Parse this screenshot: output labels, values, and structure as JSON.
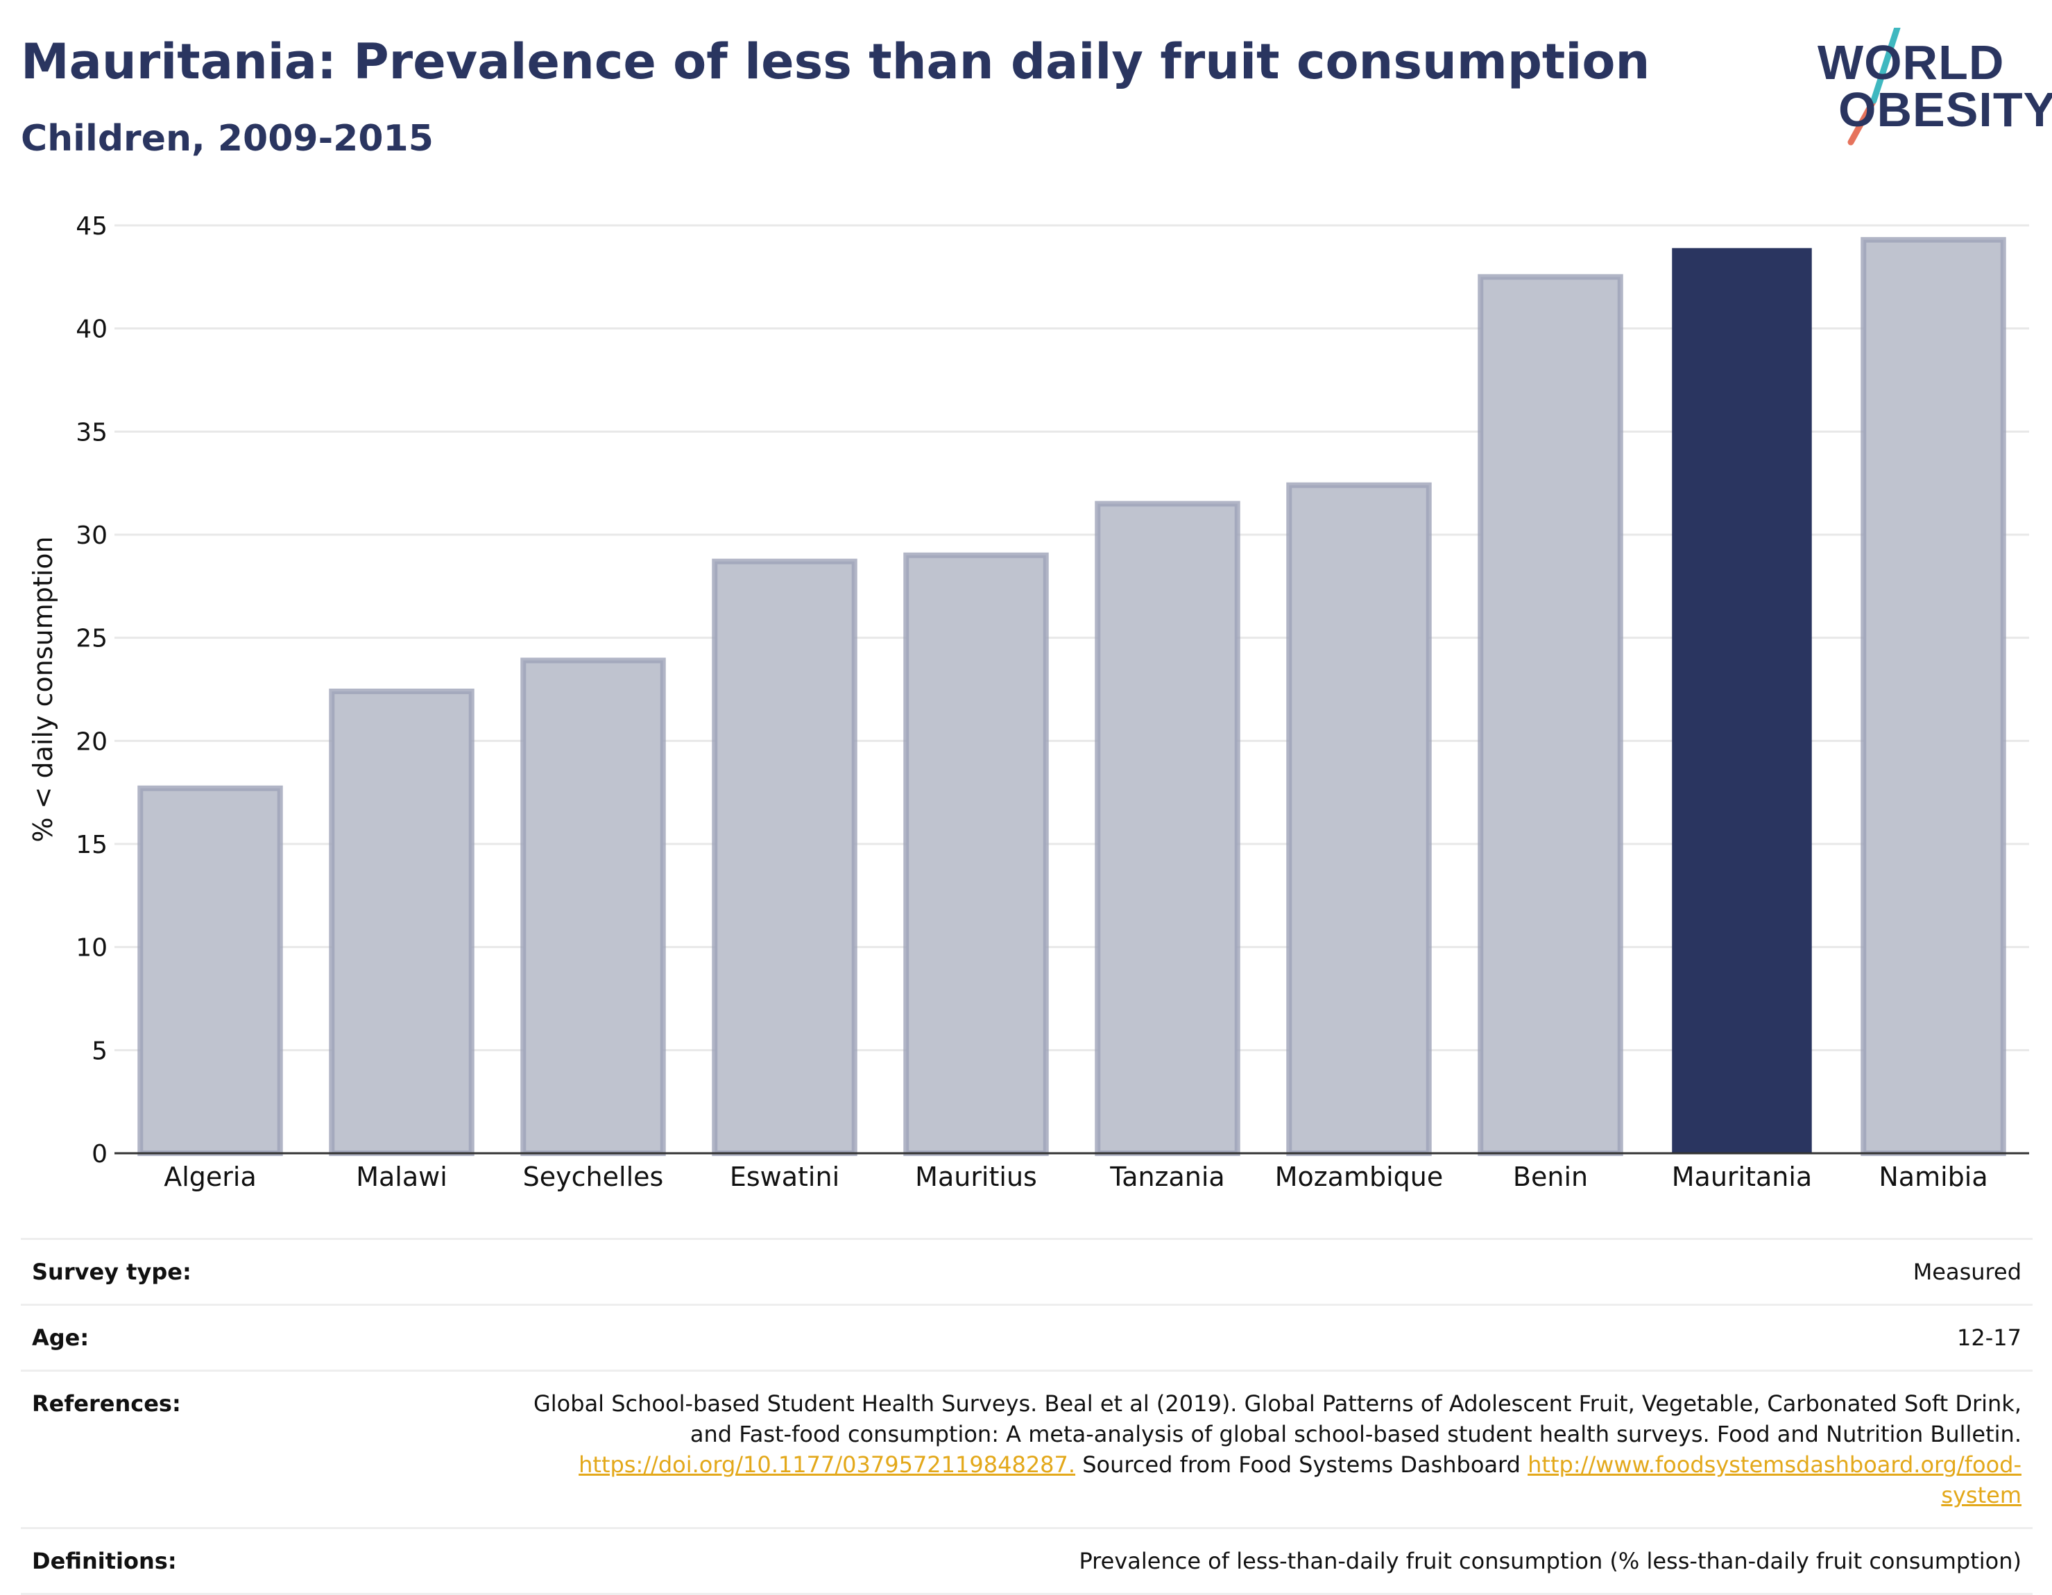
{
  "header": {
    "title": "Mauritania: Prevalence of less than daily fruit consumption",
    "subtitle": "Children, 2009-2015"
  },
  "logo": {
    "line1": "WORLD",
    "line2": "OBESITY"
  },
  "colors": {
    "highlight": "#2a3560",
    "bar_fill": "#bfc3cf",
    "bar_stroke": "#9da3b8",
    "link": "#e3a81a",
    "logo_slash_teal": "#3fb8c0",
    "logo_slash_red": "#e6735c"
  },
  "chart_data": {
    "type": "bar",
    "title": "",
    "ylabel": "% < daily consumption",
    "categories": [
      "Algeria",
      "Malawi",
      "Seychelles",
      "Eswatini",
      "Mauritius",
      "Tanzania",
      "Mozambique",
      "Benin",
      "Mauritania",
      "Namibia"
    ],
    "values": [
      17.7,
      22.4,
      23.9,
      28.7,
      29.0,
      31.5,
      32.4,
      42.5,
      43.9,
      44.3
    ],
    "highlight": "Mauritania",
    "ylim": [
      0,
      45
    ],
    "yticks": [
      0,
      5,
      10,
      15,
      20,
      25,
      30,
      35,
      40,
      45
    ],
    "grid": true
  },
  "meta": {
    "survey_label": "Survey type:",
    "survey_value": "Measured",
    "age_label": "Age:",
    "age_value": "12-17",
    "references_label": "References:",
    "references_text1": "Global School-based Student Health Surveys. Beal et al (2019). Global Patterns of Adolescent Fruit, Vegetable, Carbonated Soft Drink, and Fast-food consumption: A meta-analysis of global school-based student health surveys. Food and Nutrition Bulletin.",
    "references_link1": "https://doi.org/10.1177/0379572119848287.",
    "references_text2": "Sourced from Food Systems Dashboard",
    "references_link2": "http://www.foodsystemsdashboard.org/food-system",
    "definitions_label": "Definitions:",
    "definitions_value": "Prevalence of less-than-daily fruit consumption (% less-than-daily fruit consumption)"
  }
}
